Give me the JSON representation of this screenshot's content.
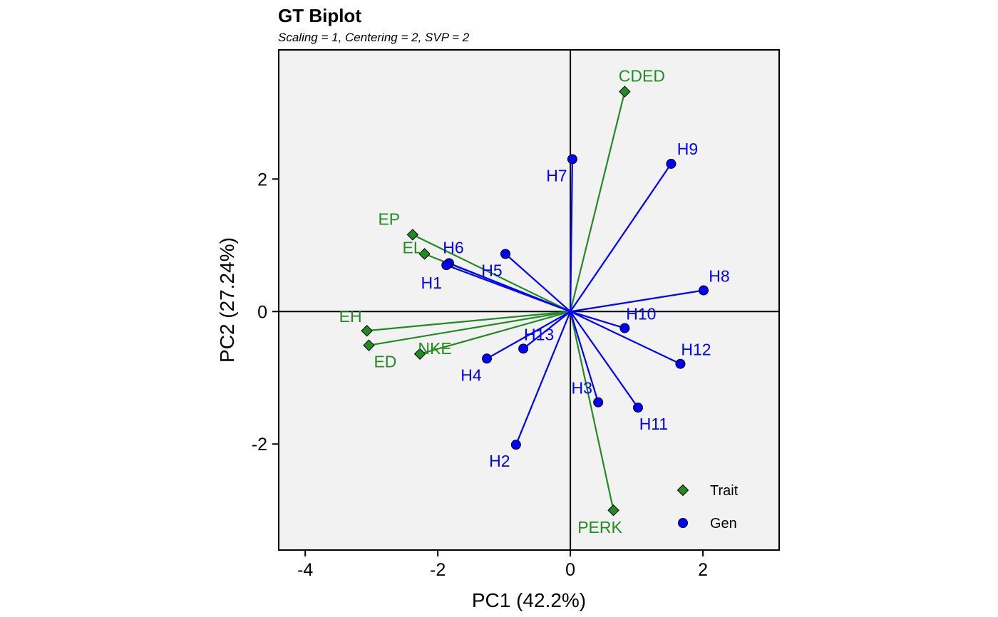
{
  "chart_data": {
    "type": "scatter",
    "title": "GT Biplot",
    "subtitle": "Scaling = 1, Centering = 2, SVP = 2",
    "xlabel": "PC1 (42.2%)",
    "ylabel": "PC2 (27.24%)",
    "xlim": [
      -4.4,
      3.15
    ],
    "ylim": [
      -3.6,
      3.95
    ],
    "xticks": [
      -4,
      -2,
      0,
      2
    ],
    "yticks": [
      -2,
      0,
      2
    ],
    "xtick_labels": [
      "-4",
      "-2",
      "0",
      "2"
    ],
    "ytick_labels": [
      "-2",
      "0",
      "2"
    ],
    "grid": false,
    "legend_position": "bottom-right",
    "colors": {
      "trait": "#228B22",
      "gen": "#0000FF",
      "panel": "#F2F2F2"
    },
    "series": [
      {
        "name": "Trait",
        "marker": "diamond",
        "points": [
          {
            "label": "CDED",
            "x": 0.82,
            "y": 3.32
          },
          {
            "label": "EP",
            "x": -2.38,
            "y": 1.16
          },
          {
            "label": "EL",
            "x": -2.2,
            "y": 0.87
          },
          {
            "label": "EH",
            "x": -3.07,
            "y": -0.29
          },
          {
            "label": "ED",
            "x": -3.04,
            "y": -0.51
          },
          {
            "label": "NKE",
            "x": -2.27,
            "y": -0.64
          },
          {
            "label": "PERK",
            "x": 0.65,
            "y": -3.0
          }
        ]
      },
      {
        "name": "Gen",
        "marker": "circle",
        "points": [
          {
            "label": "H7",
            "x": 0.03,
            "y": 2.3
          },
          {
            "label": "H9",
            "x": 1.52,
            "y": 2.23
          },
          {
            "label": "H6",
            "x": -1.83,
            "y": 0.73
          },
          {
            "label": "H1",
            "x": -1.87,
            "y": 0.7
          },
          {
            "label": "H5",
            "x": -0.98,
            "y": 0.87
          },
          {
            "label": "H8",
            "x": 2.01,
            "y": 0.32
          },
          {
            "label": "H10",
            "x": 0.82,
            "y": -0.25
          },
          {
            "label": "H13",
            "x": -0.71,
            "y": -0.56
          },
          {
            "label": "H4",
            "x": -1.26,
            "y": -0.71
          },
          {
            "label": "H12",
            "x": 1.66,
            "y": -0.79
          },
          {
            "label": "H3",
            "x": 0.42,
            "y": -1.37
          },
          {
            "label": "H11",
            "x": 1.02,
            "y": -1.45
          },
          {
            "label": "H2",
            "x": -0.82,
            "y": -2.01
          }
        ]
      }
    ]
  }
}
